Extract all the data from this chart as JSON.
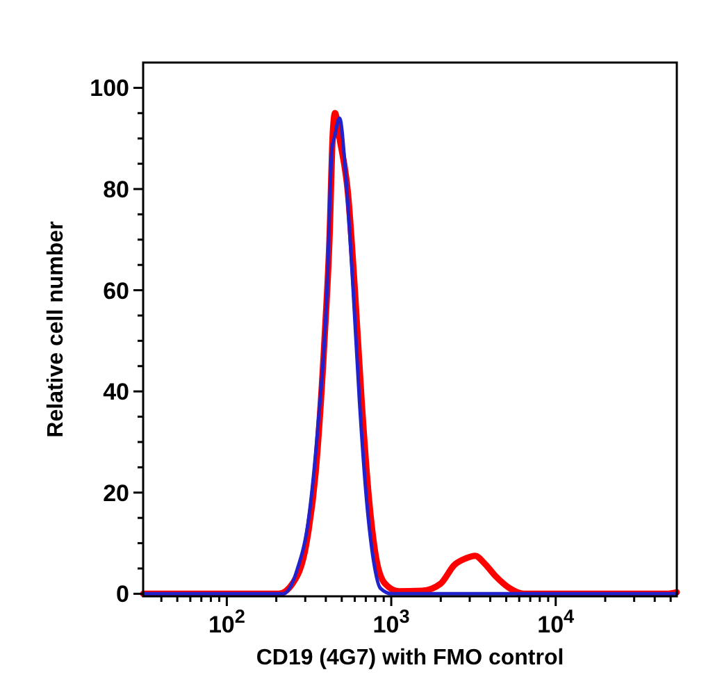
{
  "chart_data": {
    "type": "line",
    "xlabel": "CD19 (4G7) with FMO control",
    "ylabel": "Relative cell number",
    "log": "x",
    "line_style": "solid",
    "marker": "none",
    "grid": false,
    "xlim": [
      31,
      54500
    ],
    "ylim": [
      -0.5,
      105
    ],
    "xticks": [
      {
        "value": 40,
        "label": null
      },
      {
        "value": 50,
        "label": null
      },
      {
        "value": 60,
        "label": null
      },
      {
        "value": 70,
        "label": null
      },
      {
        "value": 80,
        "label": null
      },
      {
        "value": 90,
        "label": null
      },
      {
        "value": 100,
        "label": "10$^{2}$"
      },
      {
        "value": 200,
        "label": null
      },
      {
        "value": 300,
        "label": null
      },
      {
        "value": 400,
        "label": null
      },
      {
        "value": 500,
        "label": null
      },
      {
        "value": 600,
        "label": null
      },
      {
        "value": 700,
        "label": null
      },
      {
        "value": 800,
        "label": null
      },
      {
        "value": 900,
        "label": null
      },
      {
        "value": 1000,
        "label": "10$^{3}$"
      },
      {
        "value": 2000,
        "label": null
      },
      {
        "value": 3000,
        "label": null
      },
      {
        "value": 4000,
        "label": null
      },
      {
        "value": 5000,
        "label": null
      },
      {
        "value": 6000,
        "label": null
      },
      {
        "value": 7000,
        "label": null
      },
      {
        "value": 8000,
        "label": null
      },
      {
        "value": 9000,
        "label": null
      },
      {
        "value": 10000,
        "label": "10$^{4}$"
      },
      {
        "value": 20000,
        "label": null
      },
      {
        "value": 30000,
        "label": null
      },
      {
        "value": 40000,
        "label": null
      },
      {
        "value": 50000,
        "label": null
      }
    ],
    "yticks": [
      0,
      {
        "value": 5,
        "label": null
      },
      {
        "value": 10,
        "label": null
      },
      {
        "value": 15,
        "label": null
      },
      20,
      {
        "value": 25,
        "label": null
      },
      {
        "value": 30,
        "label": null
      },
      {
        "value": 35,
        "label": null
      },
      40,
      {
        "value": 45,
        "label": null
      },
      {
        "value": 50,
        "label": null
      },
      {
        "value": 55,
        "label": null
      },
      60,
      {
        "value": 65,
        "label": null
      },
      {
        "value": 70,
        "label": null
      },
      {
        "value": 75,
        "label": null
      },
      80,
      {
        "value": 85,
        "label": null
      },
      {
        "value": 90,
        "label": null
      },
      {
        "value": 95,
        "label": null
      },
      100
    ],
    "series": [
      {
        "color": "#ff0000",
        "x": [
          31,
          207,
          251,
          305,
          347,
          394,
          421,
          441,
          455,
          485,
          546,
          601,
          661,
          731,
          805,
          916,
          1112,
          1538,
          1995,
          2421,
          2844,
          3236,
          3690,
          4335,
          5248,
          6397,
          47600,
          54500
        ],
        "values": [
          0,
          0,
          2,
          10,
          24,
          51,
          70,
          91,
          95,
          90,
          79,
          60,
          38,
          19,
          7.5,
          2,
          0.5,
          0.6,
          2,
          5.7,
          7,
          7.5,
          6,
          3.4,
          1.1,
          0,
          0,
          0.3
        ]
      },
      {
        "color": "#2222cc",
        "x": [
          31,
          219,
          268,
          315,
          358,
          407,
          436,
          450,
          485,
          528,
          582,
          641,
          708,
          780,
          859,
          1009,
          54500
        ],
        "values": [
          0,
          0,
          4.8,
          15,
          33,
          60,
          88,
          90,
          94,
          83,
          62,
          38,
          18.5,
          6.6,
          1.1,
          0,
          0
        ]
      }
    ]
  }
}
